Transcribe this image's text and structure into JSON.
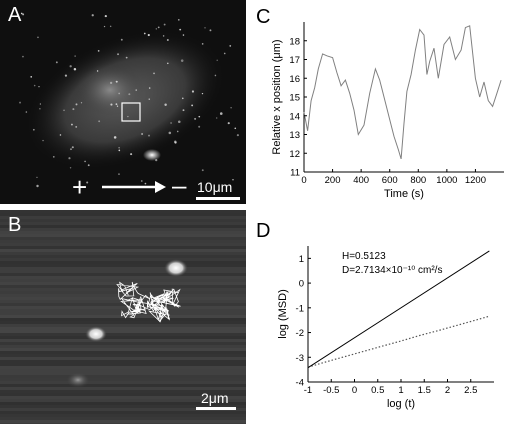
{
  "panels": {
    "a": {
      "label": "A",
      "scale_label": "10μm",
      "polarity_plus": "+",
      "polarity_minus": "–"
    },
    "b": {
      "label": "B",
      "scale_label": "2μm"
    },
    "c": {
      "label": "C"
    },
    "d": {
      "label": "D",
      "annotation_h": "H=0.5123",
      "annotation_d": "D=2.7134×10⁻¹⁰ cm²/s"
    }
  },
  "chart_data": [
    {
      "type": "line",
      "panel": "C",
      "xlabel": "Time (s)",
      "ylabel": "Relative x position (μm)",
      "xlim": [
        0,
        1400
      ],
      "ylim": [
        11,
        19
      ],
      "xticks": [
        0,
        200,
        400,
        600,
        800,
        1000,
        1200
      ],
      "yticks": [
        11,
        12,
        13,
        14,
        15,
        16,
        17,
        18
      ],
      "grid": false,
      "color": "#808080",
      "series": [
        {
          "x": [
            0,
            25,
            50,
            75,
            100,
            130,
            160,
            200,
            230,
            260,
            290,
            320,
            350,
            380,
            420,
            460,
            500,
            530,
            560,
            600,
            630,
            660,
            680,
            700,
            720,
            750,
            780,
            810,
            840,
            860,
            880,
            910,
            940,
            980,
            1020,
            1060,
            1100,
            1130,
            1160,
            1200,
            1230,
            1260,
            1290,
            1320,
            1350,
            1380
          ],
          "y": [
            14.2,
            13.2,
            14.8,
            15.5,
            16.5,
            17.3,
            17.2,
            17.1,
            16.3,
            15.6,
            15.9,
            15.2,
            14.3,
            13.0,
            13.5,
            15.2,
            16.5,
            15.9,
            15.0,
            13.8,
            12.9,
            12.2,
            11.7,
            13.6,
            15.3,
            16.2,
            17.5,
            18.6,
            18.3,
            16.2,
            16.9,
            17.6,
            16.0,
            17.8,
            18.2,
            17.0,
            17.5,
            18.7,
            18.8,
            16.0,
            15.0,
            15.8,
            14.8,
            14.5,
            15.2,
            15.9
          ]
        }
      ]
    },
    {
      "type": "line",
      "panel": "D",
      "xlabel": "log (t)",
      "ylabel": "log (MSD)",
      "xlim": [
        -1,
        3
      ],
      "ylim": [
        -4,
        1.5
      ],
      "xticks": [
        -1,
        -0.5,
        0,
        0.5,
        1,
        1.5,
        2,
        2.5
      ],
      "yticks": [
        -4,
        -3,
        -2,
        -1,
        0,
        1
      ],
      "grid": false,
      "series": [
        {
          "style": "dotted",
          "x": [
            -1,
            -0.6,
            -0.2,
            0.2,
            0.6,
            1.0,
            1.4,
            1.8,
            2.2,
            2.6,
            2.9
          ],
          "y": [
            -3.4,
            -3.18,
            -2.97,
            -2.76,
            -2.55,
            -2.34,
            -2.12,
            -1.92,
            -1.71,
            -1.5,
            -1.34
          ]
        },
        {
          "style": "solid",
          "x": [
            -1,
            2.9
          ],
          "y": [
            -3.42,
            1.3
          ]
        }
      ]
    }
  ]
}
